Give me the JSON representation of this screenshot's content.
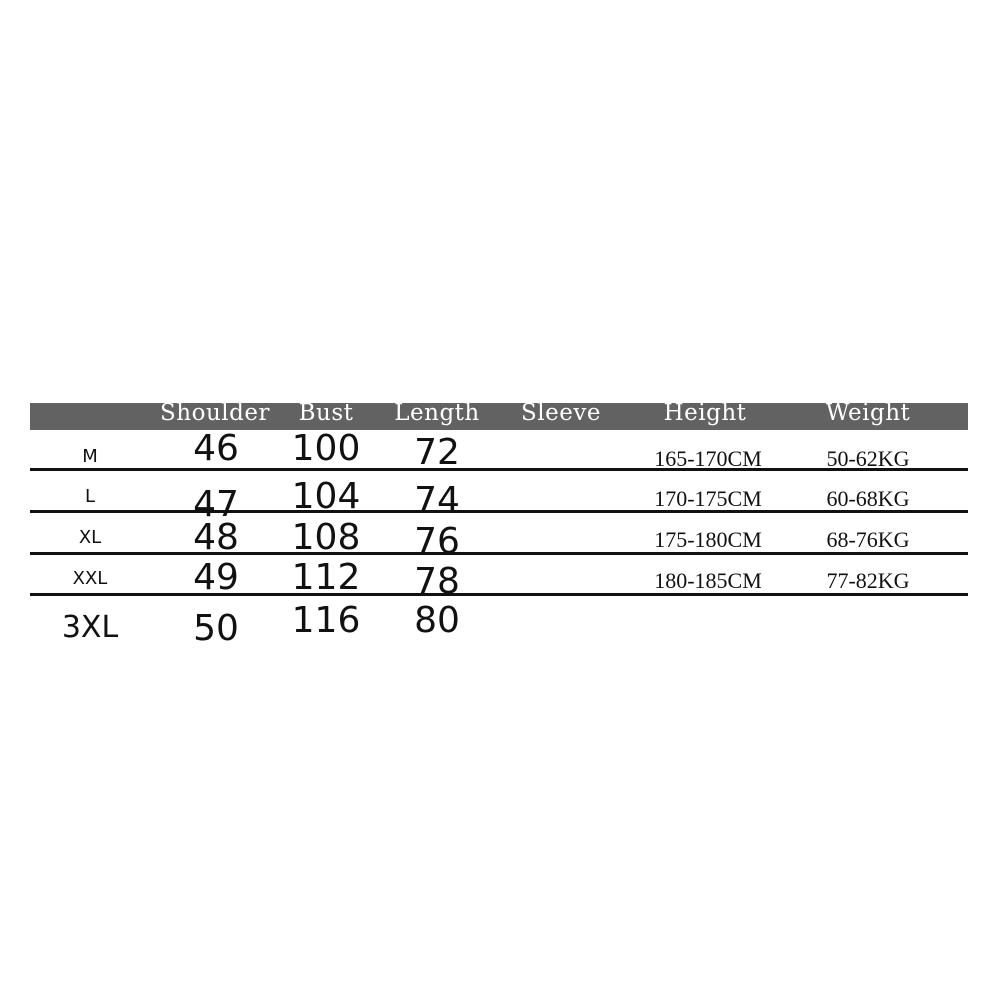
{
  "headers": [
    "Shoulder",
    "Bust",
    "Length",
    "Sleeve",
    "Height",
    "Weight"
  ],
  "header_color": "#626262",
  "rows": [
    {
      "size": "M",
      "shoulder": "46",
      "bust": "100",
      "length": "72",
      "sleeve": "",
      "height": "165-170CM",
      "weight": "50-62KG"
    },
    {
      "size": "L",
      "shoulder": "47",
      "bust": "104",
      "length": "74",
      "sleeve": "",
      "height": "170-175CM",
      "weight": "60-68KG"
    },
    {
      "size": "XL",
      "shoulder": "48",
      "bust": "108",
      "length": "76",
      "sleeve": "",
      "height": "175-180CM",
      "weight": "68-76KG"
    },
    {
      "size": "XXL",
      "shoulder": "49",
      "bust": "112",
      "length": "78",
      "sleeve": "",
      "height": "180-185CM",
      "weight": "77-82KG"
    },
    {
      "size": "3XL",
      "shoulder": "50",
      "bust": "116",
      "length": "80",
      "sleeve": "",
      "height": "",
      "weight": ""
    }
  ]
}
